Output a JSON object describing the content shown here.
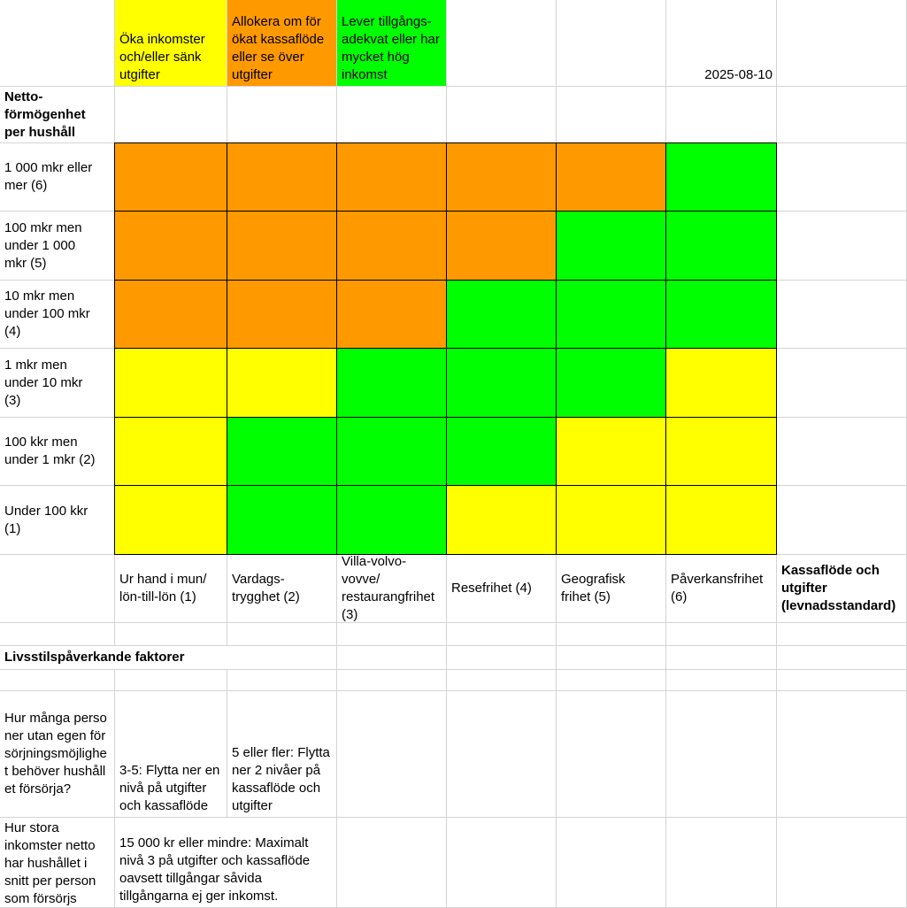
{
  "legend": [
    {
      "label": "Öka inkomster och/eller sänk utgifter",
      "color": "#ffff00"
    },
    {
      "label": "Allokera om för ökat kassaflöde eller se över utgifter",
      "color": "#ff9900"
    },
    {
      "label": "Lever tillgångs-adekvat eller har mycket hög inkomst",
      "color": "#00ff00"
    }
  ],
  "date": "2025-08-10",
  "y_axis_title": "Netto-\nförmögenhet\nper hushåll",
  "x_axis_title": "Kassaflöde och\nutgifter\n(levnadsstandard)",
  "rows": [
    "1 000 mkr eller\nmer (6)",
    "100 mkr men\nunder 1 000\nmkr (5)",
    "10 mkr men\nunder 100 mkr\n(4)",
    "1 mkr men\nunder 10 mkr\n(3)",
    "100 kkr men\nunder 1 mkr (2)",
    "Under 100 kkr\n(1)"
  ],
  "columns": [
    "Ur hand i mun/\nlön-till-lön (1)",
    "Vardags-\ntrygghet (2)",
    "Villa-volvo-\nvovve/\nrestaurangfrihet\n(3)",
    "Resefrihet (4)",
    "Geografisk\nfrihet (5)",
    "Påverkansfrihet\n(6)"
  ],
  "chart_data": {
    "type": "heatmap",
    "ylabel": "Netto-förmögenhet per hushåll",
    "xlabel": "Kassaflöde och utgifter (levnadsstandard)",
    "y_categories": [
      "1 000 mkr eller mer (6)",
      "100 mkr men under 1 000 mkr (5)",
      "10 mkr men under 100 mkr (4)",
      "1 mkr men under 10 mkr (3)",
      "100 kkr men under 1 mkr (2)",
      "Under 100 kkr (1)"
    ],
    "x_categories": [
      "Ur hand i mun/lön-till-lön (1)",
      "Vardags-trygghet (2)",
      "Villa-volvo-vovve/restaurangfrihet (3)",
      "Resefrihet (4)",
      "Geografisk frihet (5)",
      "Påverkansfrihet (6)"
    ],
    "cells": [
      [
        "orange",
        "orange",
        "orange",
        "orange",
        "orange",
        "green"
      ],
      [
        "orange",
        "orange",
        "orange",
        "orange",
        "green",
        "green"
      ],
      [
        "orange",
        "orange",
        "orange",
        "green",
        "green",
        "green"
      ],
      [
        "yellow",
        "yellow",
        "green",
        "green",
        "green",
        "yellow"
      ],
      [
        "yellow",
        "green",
        "green",
        "green",
        "yellow",
        "yellow"
      ],
      [
        "yellow",
        "green",
        "green",
        "yellow",
        "yellow",
        "yellow"
      ]
    ],
    "colors": {
      "yellow": "#ffff00",
      "orange": "#ff9900",
      "green": "#00ff00"
    }
  },
  "section_title": "Livsstilspåverkande faktorer",
  "factors": [
    {
      "question": "Hur många personer utan egen försörjningsmöjlighet behöver hushållet försörja?",
      "answers": [
        "3-5: Flytta ner en nivå på utgifter och kassaflöde",
        "5 eller fler: Flytta ner 2 nivåer på kassaflöde och utgifter"
      ]
    },
    {
      "question": "Hur stora inkomster netto har hushållet i snitt per person som försörjs",
      "answers": [
        "15 000 kr eller mindre: Maximalt nivå 3 på utgifter och kassaflöde oavsett tillgångar såvida tillgångarna ej ger inkomst."
      ]
    }
  ]
}
